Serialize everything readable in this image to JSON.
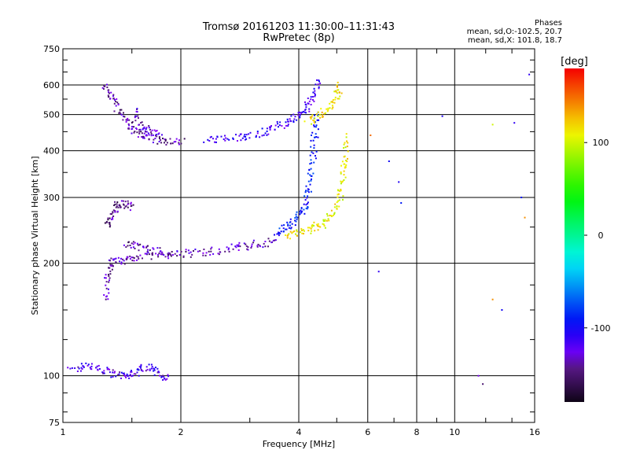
{
  "chart_data": {
    "type": "scatter",
    "title": "Tromsø 20161203 11:30:00–11:31:43",
    "subtitle": "RwPretec (8p)",
    "xlabel": "Frequency [MHz]",
    "ylabel": "Stationary phase Virtual Height [km]",
    "x_scale": "log",
    "y_scale": "log",
    "xlim": [
      1,
      16
    ],
    "ylim": [
      75,
      750
    ],
    "x_ticks": [
      1,
      2,
      4,
      6,
      8,
      10,
      16
    ],
    "y_ticks": [
      75,
      100,
      200,
      300,
      400,
      500,
      600,
      750
    ],
    "grid": true,
    "phase_note": {
      "title": "Phases",
      "line1": "mean, sd,O:-102.5, 20.7",
      "line2": "mean, sd,X: 101.8, 18.7"
    },
    "colorbar": {
      "label": "[deg]",
      "range": [
        -180,
        180
      ],
      "ticks": [
        100,
        0,
        -100
      ]
    },
    "traces": [
      {
        "points": [
          [
            1.05,
            103
          ],
          [
            1.15,
            107
          ],
          [
            1.25,
            104
          ],
          [
            1.35,
            101
          ],
          [
            1.45,
            99
          ],
          [
            1.55,
            103
          ],
          [
            1.65,
            106
          ],
          [
            1.75,
            101
          ],
          [
            1.85,
            99
          ]
        ],
        "phase": -120
      },
      {
        "points": [
          [
            1.28,
            160
          ],
          [
            1.3,
            185
          ],
          [
            1.33,
            200
          ],
          [
            1.4,
            203
          ],
          [
            1.5,
            207
          ],
          [
            1.65,
            210
          ],
          [
            1.85,
            211
          ],
          [
            2.05,
            212
          ],
          [
            2.3,
            214
          ],
          [
            2.6,
            218
          ],
          [
            2.9,
            222
          ],
          [
            3.2,
            226
          ],
          [
            3.5,
            229
          ]
        ],
        "phase": -135
      },
      {
        "points": [
          [
            1.3,
            250
          ],
          [
            1.33,
            270
          ],
          [
            1.37,
            285
          ],
          [
            1.43,
            290
          ],
          [
            1.5,
            282
          ]
        ],
        "phase": -145
      },
      {
        "points": [
          [
            1.45,
            225
          ],
          [
            1.55,
            222
          ],
          [
            1.7,
            216
          ],
          [
            1.9,
            212
          ]
        ],
        "phase": -140
      },
      {
        "points": [
          [
            1.28,
            600
          ],
          [
            1.32,
            560
          ],
          [
            1.38,
            520
          ],
          [
            1.45,
            480
          ],
          [
            1.52,
            455
          ],
          [
            1.6,
            440
          ],
          [
            1.7,
            430
          ],
          [
            1.85,
            425
          ],
          [
            2.05,
            425
          ]
        ],
        "phase": -140
      },
      {
        "points": [
          [
            1.52,
            510
          ],
          [
            1.58,
            470
          ],
          [
            1.66,
            450
          ],
          [
            1.78,
            440
          ]
        ],
        "phase": -130
      },
      {
        "points": [
          [
            2.3,
            428
          ],
          [
            2.6,
            430
          ],
          [
            2.9,
            437
          ],
          [
            3.2,
            448
          ],
          [
            3.5,
            463
          ],
          [
            3.8,
            480
          ],
          [
            4.0,
            495
          ],
          [
            4.2,
            520
          ],
          [
            4.35,
            560
          ],
          [
            4.5,
            630
          ]
        ],
        "phase": -115
      },
      {
        "points": [
          [
            3.5,
            242
          ],
          [
            3.7,
            250
          ],
          [
            3.9,
            260
          ],
          [
            4.1,
            275
          ],
          [
            4.2,
            300
          ],
          [
            4.3,
            340
          ],
          [
            4.35,
            390
          ],
          [
            4.4,
            450
          ],
          [
            4.45,
            500
          ]
        ],
        "phase": -90
      },
      {
        "points": [
          [
            3.7,
            237
          ],
          [
            4.0,
            241
          ],
          [
            4.3,
            247
          ],
          [
            4.6,
            255
          ],
          [
            4.9,
            270
          ],
          [
            5.1,
            300
          ],
          [
            5.2,
            340
          ],
          [
            5.25,
            380
          ],
          [
            5.3,
            440
          ]
        ],
        "phase": 110
      },
      {
        "points": [
          [
            4.2,
            480
          ],
          [
            4.5,
            495
          ],
          [
            4.8,
            520
          ],
          [
            5.0,
            560
          ],
          [
            5.1,
            610
          ]
        ],
        "phase": 115
      }
    ],
    "scattered_points": [
      [
        6.1,
        440,
        150
      ],
      [
        6.4,
        190,
        -110
      ],
      [
        6.8,
        375,
        -100
      ],
      [
        7.2,
        330,
        -105
      ],
      [
        7.3,
        290,
        -90
      ],
      [
        9.3,
        495,
        -105
      ],
      [
        12.5,
        470,
        100
      ],
      [
        12.5,
        160,
        140
      ],
      [
        13.2,
        150,
        -100
      ],
      [
        14.2,
        475,
        -110
      ],
      [
        14.8,
        300,
        -90
      ],
      [
        15.1,
        265,
        140
      ],
      [
        15.5,
        640,
        -110
      ],
      [
        11.5,
        100,
        -130
      ],
      [
        11.8,
        95,
        -150
      ]
    ]
  }
}
